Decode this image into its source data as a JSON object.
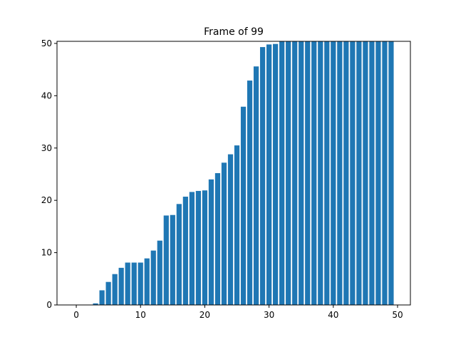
{
  "chart_data": {
    "type": "bar",
    "title": "Frame of 99",
    "xlabel": "",
    "ylabel": "",
    "xlim": [
      -3,
      52
    ],
    "ylim": [
      0,
      50.4
    ],
    "grid": false,
    "bar_color": "#1f77b4",
    "x_ticks": [
      0,
      10,
      20,
      30,
      40,
      50
    ],
    "y_ticks": [
      0,
      10,
      20,
      30,
      40,
      50
    ],
    "x": [
      0,
      1,
      2,
      3,
      4,
      5,
      6,
      7,
      8,
      9,
      10,
      11,
      12,
      13,
      14,
      15,
      16,
      17,
      18,
      19,
      20,
      21,
      22,
      23,
      24,
      25,
      26,
      27,
      28,
      29,
      30,
      31,
      32,
      33,
      34,
      35,
      36,
      37,
      38,
      39,
      40,
      41,
      42,
      43,
      44,
      45,
      46,
      47,
      48,
      49
    ],
    "values": [
      0,
      0,
      0,
      0.3,
      2.8,
      4.4,
      5.9,
      7.1,
      8.1,
      8.1,
      8.1,
      8.9,
      10.4,
      12.3,
      17.1,
      17.2,
      19.3,
      20.7,
      21.6,
      21.8,
      21.9,
      24,
      25.2,
      27.2,
      28.8,
      30.5,
      37.9,
      42.9,
      45.6,
      49.3,
      49.8,
      49.9,
      50.4,
      50.4,
      50.4,
      50.4,
      50.4,
      50.4,
      50.4,
      50.4,
      50.4,
      50.4,
      50.4,
      50.4,
      50.4,
      50.4,
      50.4,
      50.4,
      50.4,
      50.4
    ]
  }
}
